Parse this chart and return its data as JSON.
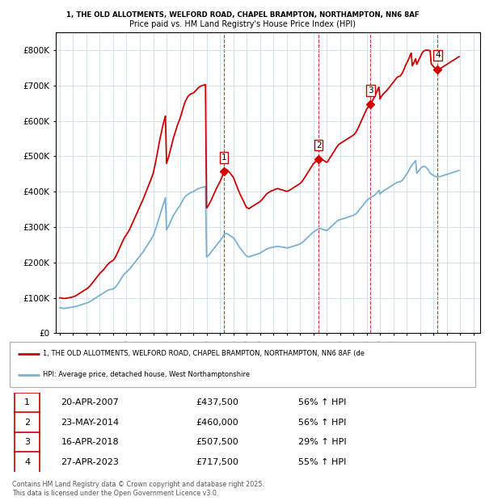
{
  "title_line1": "1, THE OLD ALLOTMENTS, WELFORD ROAD, CHAPEL BRAMPTON, NORTHAMPTON, NN6 8AF",
  "title_line2": "Price paid vs. HM Land Registry's House Price Index (HPI)",
  "ylim": [
    0,
    850000
  ],
  "yticks": [
    0,
    100000,
    200000,
    300000,
    400000,
    500000,
    600000,
    700000,
    800000
  ],
  "ytick_labels": [
    "£0",
    "£100K",
    "£200K",
    "£300K",
    "£400K",
    "£500K",
    "£600K",
    "£700K",
    "£800K"
  ],
  "xlim_start": 1994.7,
  "xlim_end": 2026.5,
  "property_color": "#cc0000",
  "hpi_color": "#7ab0d4",
  "sale_dates": [
    2007.3,
    2014.39,
    2018.29,
    2023.32
  ],
  "sale_labels": [
    "1",
    "2",
    "3",
    "4"
  ],
  "legend_property": "1, THE OLD ALLOTMENTS, WELFORD ROAD, CHAPEL BRAMPTON, NORTHAMPTON, NN6 8AF (de",
  "legend_hpi": "HPI: Average price, detached house, West Northamptonshire",
  "footnote1": "Contains HM Land Registry data © Crown copyright and database right 2025.",
  "footnote2": "This data is licensed under the Open Government Licence v3.0.",
  "table_entries": [
    {
      "num": "1",
      "date": "20-APR-2007",
      "price": "£437,500",
      "pct": "56% ↑ HPI"
    },
    {
      "num": "2",
      "date": "23-MAY-2014",
      "price": "£460,000",
      "pct": "56% ↑ HPI"
    },
    {
      "num": "3",
      "date": "16-APR-2018",
      "price": "£507,500",
      "pct": "29% ↑ HPI"
    },
    {
      "num": "4",
      "date": "27-APR-2023",
      "price": "£717,500",
      "pct": "55% ↑ HPI"
    }
  ],
  "hpi_years": [
    1995.0,
    1995.083,
    1995.167,
    1995.25,
    1995.333,
    1995.417,
    1995.5,
    1995.583,
    1995.667,
    1995.75,
    1995.833,
    1995.917,
    1996.0,
    1996.083,
    1996.167,
    1996.25,
    1996.333,
    1996.417,
    1996.5,
    1996.583,
    1996.667,
    1996.75,
    1996.833,
    1996.917,
    1997.0,
    1997.083,
    1997.167,
    1997.25,
    1997.333,
    1997.417,
    1997.5,
    1997.583,
    1997.667,
    1997.75,
    1997.833,
    1997.917,
    1998.0,
    1998.083,
    1998.167,
    1998.25,
    1998.333,
    1998.417,
    1998.5,
    1998.583,
    1998.667,
    1998.75,
    1998.833,
    1998.917,
    1999.0,
    1999.083,
    1999.167,
    1999.25,
    1999.333,
    1999.417,
    1999.5,
    1999.583,
    1999.667,
    1999.75,
    1999.833,
    1999.917,
    2000.0,
    2000.083,
    2000.167,
    2000.25,
    2000.333,
    2000.417,
    2000.5,
    2000.583,
    2000.667,
    2000.75,
    2000.833,
    2000.917,
    2001.0,
    2001.083,
    2001.167,
    2001.25,
    2001.333,
    2001.417,
    2001.5,
    2001.583,
    2001.667,
    2001.75,
    2001.833,
    2001.917,
    2002.0,
    2002.083,
    2002.167,
    2002.25,
    2002.333,
    2002.417,
    2002.5,
    2002.583,
    2002.667,
    2002.75,
    2002.833,
    2002.917,
    2003.0,
    2003.083,
    2003.167,
    2003.25,
    2003.333,
    2003.417,
    2003.5,
    2003.583,
    2003.667,
    2003.75,
    2003.833,
    2003.917,
    2004.0,
    2004.083,
    2004.167,
    2004.25,
    2004.333,
    2004.417,
    2004.5,
    2004.583,
    2004.667,
    2004.75,
    2004.833,
    2004.917,
    2005.0,
    2005.083,
    2005.167,
    2005.25,
    2005.333,
    2005.417,
    2005.5,
    2005.583,
    2005.667,
    2005.75,
    2005.833,
    2005.917,
    2006.0,
    2006.083,
    2006.167,
    2006.25,
    2006.333,
    2006.417,
    2006.5,
    2006.583,
    2006.667,
    2006.75,
    2006.833,
    2006.917,
    2007.0,
    2007.083,
    2007.167,
    2007.25,
    2007.333,
    2007.417,
    2007.5,
    2007.583,
    2007.667,
    2007.75,
    2007.833,
    2007.917,
    2008.0,
    2008.083,
    2008.167,
    2008.25,
    2008.333,
    2008.417,
    2008.5,
    2008.583,
    2008.667,
    2008.75,
    2008.833,
    2008.917,
    2009.0,
    2009.083,
    2009.167,
    2009.25,
    2009.333,
    2009.417,
    2009.5,
    2009.583,
    2009.667,
    2009.75,
    2009.833,
    2009.917,
    2010.0,
    2010.083,
    2010.167,
    2010.25,
    2010.333,
    2010.417,
    2010.5,
    2010.583,
    2010.667,
    2010.75,
    2010.833,
    2010.917,
    2011.0,
    2011.083,
    2011.167,
    2011.25,
    2011.333,
    2011.417,
    2011.5,
    2011.583,
    2011.667,
    2011.75,
    2011.833,
    2011.917,
    2012.0,
    2012.083,
    2012.167,
    2012.25,
    2012.333,
    2012.417,
    2012.5,
    2012.583,
    2012.667,
    2012.75,
    2012.833,
    2012.917,
    2013.0,
    2013.083,
    2013.167,
    2013.25,
    2013.333,
    2013.417,
    2013.5,
    2013.583,
    2013.667,
    2013.75,
    2013.833,
    2013.917,
    2014.0,
    2014.083,
    2014.167,
    2014.25,
    2014.333,
    2014.417,
    2014.5,
    2014.583,
    2014.667,
    2014.75,
    2014.833,
    2014.917,
    2015.0,
    2015.083,
    2015.167,
    2015.25,
    2015.333,
    2015.417,
    2015.5,
    2015.583,
    2015.667,
    2015.75,
    2015.833,
    2015.917,
    2016.0,
    2016.083,
    2016.167,
    2016.25,
    2016.333,
    2016.417,
    2016.5,
    2016.583,
    2016.667,
    2016.75,
    2016.833,
    2016.917,
    2017.0,
    2017.083,
    2017.167,
    2017.25,
    2017.333,
    2017.417,
    2017.5,
    2017.583,
    2017.667,
    2017.75,
    2017.833,
    2017.917,
    2018.0,
    2018.083,
    2018.167,
    2018.25,
    2018.333,
    2018.417,
    2018.5,
    2018.583,
    2018.667,
    2018.75,
    2018.833,
    2018.917,
    2019.0,
    2019.083,
    2019.167,
    2019.25,
    2019.333,
    2019.417,
    2019.5,
    2019.583,
    2019.667,
    2019.75,
    2019.833,
    2019.917,
    2020.0,
    2020.083,
    2020.167,
    2020.25,
    2020.333,
    2020.417,
    2020.5,
    2020.583,
    2020.667,
    2020.75,
    2020.833,
    2020.917,
    2021.0,
    2021.083,
    2021.167,
    2021.25,
    2021.333,
    2021.417,
    2021.5,
    2021.583,
    2021.667,
    2021.75,
    2021.833,
    2021.917,
    2022.0,
    2022.083,
    2022.167,
    2022.25,
    2022.333,
    2022.417,
    2022.5,
    2022.583,
    2022.667,
    2022.75,
    2022.833,
    2022.917,
    2023.0,
    2023.083,
    2023.167,
    2023.25,
    2023.333,
    2023.417,
    2023.5,
    2023.583,
    2023.667,
    2023.75,
    2023.833,
    2023.917,
    2024.0,
    2024.083,
    2024.167,
    2024.25,
    2024.333,
    2024.417,
    2024.5,
    2024.583,
    2024.667,
    2024.75,
    2024.833,
    2024.917
  ],
  "hpi_vals": [
    72000,
    71500,
    71000,
    70500,
    70000,
    70500,
    71000,
    71500,
    72000,
    72500,
    73000,
    73500,
    74000,
    74500,
    75000,
    76000,
    77000,
    78000,
    79000,
    80000,
    81000,
    82000,
    83000,
    84000,
    85000,
    86000,
    87500,
    89000,
    91000,
    93000,
    95000,
    97000,
    99000,
    101000,
    103000,
    105000,
    107000,
    109000,
    111000,
    113000,
    115000,
    117000,
    119000,
    121000,
    122000,
    123000,
    124000,
    124500,
    125000,
    127000,
    130000,
    134000,
    138000,
    143000,
    148000,
    153000,
    158000,
    163000,
    167000,
    170000,
    173000,
    176000,
    179000,
    182000,
    186000,
    190000,
    194000,
    198000,
    202000,
    206000,
    210000,
    214000,
    218000,
    222000,
    226000,
    230000,
    235000,
    240000,
    245000,
    250000,
    255000,
    260000,
    265000,
    270000,
    276000,
    284000,
    293000,
    303000,
    313000,
    323000,
    333000,
    343000,
    353000,
    363000,
    373000,
    383000,
    292000,
    298000,
    304000,
    311000,
    318000,
    325000,
    332000,
    337000,
    342000,
    347000,
    352000,
    356000,
    360000,
    366000,
    372000,
    378000,
    383000,
    387000,
    390000,
    392000,
    394000,
    396000,
    398000,
    399000,
    400000,
    402000,
    404000,
    406000,
    408000,
    409000,
    410000,
    411000,
    412000,
    413000,
    414000,
    415000,
    216000,
    218000,
    221000,
    225000,
    229000,
    233000,
    237000,
    241000,
    245000,
    249000,
    253000,
    257000,
    261000,
    265000,
    270000,
    275000,
    280000,
    281000,
    282000,
    280000,
    278000,
    276000,
    274000,
    272000,
    270000,
    266000,
    261000,
    256000,
    251000,
    246000,
    241000,
    237000,
    233000,
    229000,
    225000,
    221000,
    218000,
    217000,
    216000,
    217000,
    218000,
    219000,
    220000,
    221000,
    222000,
    223000,
    224000,
    225000,
    226000,
    228000,
    230000,
    232000,
    234000,
    236000,
    238000,
    239000,
    240000,
    241000,
    242000,
    242500,
    243000,
    244000,
    244500,
    245000,
    245500,
    245000,
    244500,
    244000,
    243500,
    243000,
    242500,
    242000,
    241000,
    241500,
    242000,
    243000,
    244000,
    245000,
    246000,
    247000,
    248000,
    249000,
    250000,
    251000,
    252000,
    254000,
    256000,
    259000,
    262000,
    265000,
    268000,
    271000,
    274000,
    277000,
    280000,
    283000,
    286000,
    288000,
    290000,
    292000,
    294000,
    295000,
    296000,
    295000,
    294000,
    293000,
    292000,
    291000,
    290000,
    292000,
    295000,
    298000,
    301000,
    304000,
    307000,
    310000,
    313000,
    316000,
    318000,
    320000,
    321000,
    322000,
    323000,
    324000,
    325000,
    326000,
    327000,
    328000,
    329000,
    330000,
    331000,
    332000,
    333000,
    335000,
    337000,
    340000,
    343000,
    347000,
    351000,
    355000,
    359000,
    363000,
    367000,
    371000,
    375000,
    378000,
    380000,
    382000,
    384000,
    386000,
    388000,
    390000,
    393000,
    396000,
    400000,
    404000,
    393000,
    397000,
    400000,
    402000,
    404000,
    406000,
    408000,
    410000,
    412000,
    414000,
    416000,
    418000,
    420000,
    422000,
    424000,
    426000,
    427000,
    427500,
    428000,
    430000,
    432000,
    436000,
    441000,
    446000,
    450000,
    455000,
    461000,
    467000,
    472000,
    476000,
    480000,
    484000,
    488000,
    452000,
    456000,
    460000,
    464000,
    468000,
    470000,
    472000,
    472000,
    470000,
    467000,
    463000,
    458000,
    453000,
    450000,
    448000,
    446000,
    444000,
    443000,
    442000,
    442000,
    442500,
    443000,
    444000,
    445000,
    446000,
    447000,
    448000,
    449000,
    450000,
    451000,
    452000,
    453000,
    454000,
    455000,
    456000,
    457000,
    458000,
    459000,
    460000
  ],
  "prop_years": [
    1995.0,
    1995.083,
    1995.167,
    1995.25,
    1995.333,
    1995.417,
    1995.5,
    1995.583,
    1995.667,
    1995.75,
    1995.833,
    1995.917,
    1996.0,
    1996.083,
    1996.167,
    1996.25,
    1996.333,
    1996.417,
    1996.5,
    1996.583,
    1996.667,
    1996.75,
    1996.833,
    1996.917,
    1997.0,
    1997.083,
    1997.167,
    1997.25,
    1997.333,
    1997.417,
    1997.5,
    1997.583,
    1997.667,
    1997.75,
    1997.833,
    1997.917,
    1998.0,
    1998.083,
    1998.167,
    1998.25,
    1998.333,
    1998.417,
    1998.5,
    1998.583,
    1998.667,
    1998.75,
    1998.833,
    1998.917,
    1999.0,
    1999.083,
    1999.167,
    1999.25,
    1999.333,
    1999.417,
    1999.5,
    1999.583,
    1999.667,
    1999.75,
    1999.833,
    1999.917,
    2000.0,
    2000.083,
    2000.167,
    2000.25,
    2000.333,
    2000.417,
    2000.5,
    2000.583,
    2000.667,
    2000.75,
    2000.833,
    2000.917,
    2001.0,
    2001.083,
    2001.167,
    2001.25,
    2001.333,
    2001.417,
    2001.5,
    2001.583,
    2001.667,
    2001.75,
    2001.833,
    2001.917,
    2002.0,
    2002.083,
    2002.167,
    2002.25,
    2002.333,
    2002.417,
    2002.5,
    2002.583,
    2002.667,
    2002.75,
    2002.833,
    2002.917,
    2003.0,
    2003.083,
    2003.167,
    2003.25,
    2003.333,
    2003.417,
    2003.5,
    2003.583,
    2003.667,
    2003.75,
    2003.833,
    2003.917,
    2004.0,
    2004.083,
    2004.167,
    2004.25,
    2004.333,
    2004.417,
    2004.5,
    2004.583,
    2004.667,
    2004.75,
    2004.833,
    2004.917,
    2005.0,
    2005.083,
    2005.167,
    2005.25,
    2005.333,
    2005.417,
    2005.5,
    2005.583,
    2005.667,
    2005.75,
    2005.833,
    2005.917,
    2006.0,
    2006.083,
    2006.167,
    2006.25,
    2006.333,
    2006.417,
    2006.5,
    2006.583,
    2006.667,
    2006.75,
    2006.833,
    2006.917,
    2007.0,
    2007.083,
    2007.167,
    2007.25,
    2007.333,
    2007.417,
    2007.5,
    2007.583,
    2007.667,
    2007.75,
    2007.833,
    2007.917,
    2008.0,
    2008.083,
    2008.167,
    2008.25,
    2008.333,
    2008.417,
    2008.5,
    2008.583,
    2008.667,
    2008.75,
    2008.833,
    2008.917,
    2009.0,
    2009.083,
    2009.167,
    2009.25,
    2009.333,
    2009.417,
    2009.5,
    2009.583,
    2009.667,
    2009.75,
    2009.833,
    2009.917,
    2010.0,
    2010.083,
    2010.167,
    2010.25,
    2010.333,
    2010.417,
    2010.5,
    2010.583,
    2010.667,
    2010.75,
    2010.833,
    2010.917,
    2011.0,
    2011.083,
    2011.167,
    2011.25,
    2011.333,
    2011.417,
    2011.5,
    2011.583,
    2011.667,
    2011.75,
    2011.833,
    2011.917,
    2012.0,
    2012.083,
    2012.167,
    2012.25,
    2012.333,
    2012.417,
    2012.5,
    2012.583,
    2012.667,
    2012.75,
    2012.833,
    2012.917,
    2013.0,
    2013.083,
    2013.167,
    2013.25,
    2013.333,
    2013.417,
    2013.5,
    2013.583,
    2013.667,
    2013.75,
    2013.833,
    2013.917,
    2014.0,
    2014.083,
    2014.167,
    2014.25,
    2014.333,
    2014.417,
    2014.5,
    2014.583,
    2014.667,
    2014.75,
    2014.833,
    2014.917,
    2015.0,
    2015.083,
    2015.167,
    2015.25,
    2015.333,
    2015.417,
    2015.5,
    2015.583,
    2015.667,
    2015.75,
    2015.833,
    2015.917,
    2016.0,
    2016.083,
    2016.167,
    2016.25,
    2016.333,
    2016.417,
    2016.5,
    2016.583,
    2016.667,
    2016.75,
    2016.833,
    2016.917,
    2017.0,
    2017.083,
    2017.167,
    2017.25,
    2017.333,
    2017.417,
    2017.5,
    2017.583,
    2017.667,
    2017.75,
    2017.833,
    2017.917,
    2018.0,
    2018.083,
    2018.167,
    2018.25,
    2018.333,
    2018.417,
    2018.5,
    2018.583,
    2018.667,
    2018.75,
    2018.833,
    2018.917,
    2019.0,
    2019.083,
    2019.167,
    2019.25,
    2019.333,
    2019.417,
    2019.5,
    2019.583,
    2019.667,
    2019.75,
    2019.833,
    2019.917,
    2020.0,
    2020.083,
    2020.167,
    2020.25,
    2020.333,
    2020.417,
    2020.5,
    2020.583,
    2020.667,
    2020.75,
    2020.833,
    2020.917,
    2021.0,
    2021.083,
    2021.167,
    2021.25,
    2021.333,
    2021.417,
    2021.5,
    2021.583,
    2021.667,
    2021.75,
    2021.833,
    2021.917,
    2022.0,
    2022.083,
    2022.167,
    2022.25,
    2022.333,
    2022.417,
    2022.5,
    2022.583,
    2022.667,
    2022.75,
    2022.833,
    2022.917,
    2023.0,
    2023.083,
    2023.167,
    2023.25,
    2023.333,
    2023.417,
    2023.5,
    2023.583,
    2023.667,
    2023.75,
    2023.833,
    2023.917,
    2024.0,
    2024.083,
    2024.167,
    2024.25,
    2024.333,
    2024.417,
    2024.5,
    2024.583,
    2024.667,
    2024.75,
    2024.833,
    2024.917
  ],
  "prop_vals": [
    100000,
    99500,
    99000,
    98500,
    98000,
    98500,
    99000,
    99500,
    100000,
    100500,
    101000,
    102000,
    103000,
    104000,
    105000,
    107000,
    109000,
    111000,
    113000,
    115000,
    117000,
    119000,
    121000,
    123000,
    125000,
    127000,
    130000,
    133000,
    137000,
    141000,
    145000,
    149000,
    153000,
    157000,
    161000,
    165000,
    169000,
    172000,
    175000,
    178000,
    182000,
    186000,
    190000,
    194000,
    197000,
    200000,
    202000,
    204000,
    206000,
    210000,
    215000,
    221000,
    228000,
    235000,
    242000,
    249000,
    256000,
    263000,
    269000,
    274000,
    279000,
    284000,
    289000,
    295000,
    302000,
    309000,
    316000,
    323000,
    330000,
    337000,
    344000,
    351000,
    358000,
    365000,
    372000,
    379000,
    387000,
    395000,
    403000,
    411000,
    419000,
    427000,
    435000,
    443000,
    452000,
    466000,
    481000,
    497000,
    514000,
    531000,
    548000,
    563000,
    577000,
    591000,
    603000,
    614000,
    480000,
    490000,
    500000,
    512000,
    524000,
    537000,
    550000,
    560000,
    570000,
    580000,
    590000,
    598000,
    606000,
    616000,
    627000,
    638000,
    648000,
    656000,
    662000,
    668000,
    672000,
    675000,
    677000,
    678000,
    679000,
    682000,
    685000,
    688000,
    692000,
    695000,
    697000,
    699000,
    700000,
    701000,
    702000,
    703000,
    354000,
    358000,
    363000,
    369000,
    375000,
    382000,
    389000,
    396000,
    403000,
    410000,
    416000,
    422000,
    428000,
    435000,
    443000,
    452000,
    461000,
    462000,
    463000,
    460000,
    457000,
    453000,
    449000,
    445000,
    441000,
    434000,
    425000,
    417000,
    409000,
    401000,
    394000,
    387000,
    381000,
    375000,
    368000,
    361000,
    355000,
    354000,
    352000,
    354000,
    356000,
    358000,
    360000,
    362000,
    364000,
    366000,
    368000,
    370000,
    372000,
    375000,
    378000,
    382000,
    386000,
    390000,
    394000,
    396000,
    398000,
    400000,
    402000,
    403000,
    404000,
    406000,
    407000,
    408000,
    409000,
    408000,
    407000,
    406000,
    405000,
    404000,
    403000,
    402000,
    401000,
    402000,
    403000,
    405000,
    407000,
    409000,
    411000,
    413000,
    415000,
    417000,
    419000,
    421000,
    423000,
    426000,
    430000,
    434000,
    439000,
    444000,
    449000,
    454000,
    459000,
    464000,
    469000,
    474000,
    479000,
    482000,
    485000,
    488000,
    491000,
    493000,
    494000,
    493000,
    491000,
    489000,
    487000,
    485000,
    483000,
    486000,
    491000,
    496000,
    501000,
    506000,
    511000,
    516000,
    521000,
    526000,
    530000,
    534000,
    536000,
    538000,
    540000,
    542000,
    544000,
    546000,
    548000,
    550000,
    552000,
    554000,
    556000,
    558000,
    560000,
    563000,
    567000,
    572000,
    578000,
    585000,
    592000,
    599000,
    606000,
    613000,
    620000,
    627000,
    634000,
    638000,
    641000,
    644000,
    650000,
    656000,
    662000,
    668000,
    675000,
    682000,
    689000,
    696000,
    662000,
    668000,
    673000,
    677000,
    680000,
    683000,
    686000,
    690000,
    694000,
    698000,
    702000,
    706000,
    710000,
    714000,
    718000,
    722000,
    725000,
    726000,
    727000,
    731000,
    736000,
    742000,
    750000,
    758000,
    764000,
    770000,
    777000,
    785000,
    792000,
    756000,
    762000,
    769000,
    776000,
    760000,
    767000,
    774000,
    780000,
    787000,
    793000,
    797000,
    799000,
    800000,
    800500,
    800000,
    799500,
    799000,
    762000,
    758000,
    754000,
    751000,
    748000,
    747000,
    746000,
    747000,
    748000,
    750000,
    752000,
    754000,
    756000,
    758000,
    760000,
    762000,
    764000,
    766000,
    768000,
    770000,
    772000,
    774000,
    776000,
    778000,
    780000,
    782000
  ]
}
